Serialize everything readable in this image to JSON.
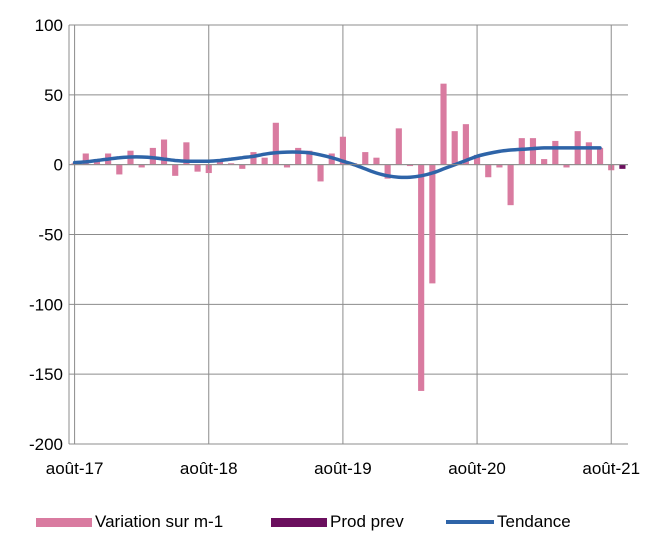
{
  "chart_data": {
    "type": "bar",
    "title": "",
    "xlabel": "",
    "ylabel": "",
    "ylim": [
      -200,
      100
    ],
    "yticks": [
      100,
      50,
      0,
      -50,
      -100,
      -150,
      -200
    ],
    "xtick_labels": [
      "août-17",
      "août-18",
      "août-19",
      "août-20",
      "août-21"
    ],
    "x": [
      "2017-08",
      "2017-09",
      "2017-10",
      "2017-11",
      "2017-12",
      "2018-01",
      "2018-02",
      "2018-03",
      "2018-04",
      "2018-05",
      "2018-06",
      "2018-07",
      "2018-08",
      "2018-09",
      "2018-10",
      "2018-11",
      "2018-12",
      "2019-01",
      "2019-02",
      "2019-03",
      "2019-04",
      "2019-05",
      "2019-06",
      "2019-07",
      "2019-08",
      "2019-09",
      "2019-10",
      "2019-11",
      "2019-12",
      "2020-01",
      "2020-02",
      "2020-03",
      "2020-04",
      "2020-05",
      "2020-06",
      "2020-07",
      "2020-08",
      "2020-09",
      "2020-10",
      "2020-11",
      "2020-12",
      "2021-01",
      "2021-02",
      "2021-03",
      "2021-04",
      "2021-05",
      "2021-06",
      "2021-07",
      "2021-08",
      "2021-09"
    ],
    "series": [
      {
        "name": "Variation sur m-1",
        "kind": "bar",
        "color": "#d97ba0",
        "values": [
          1,
          8,
          3,
          8,
          -7,
          10,
          -2,
          12,
          18,
          -8,
          16,
          -5,
          -6,
          3,
          1,
          -3,
          9,
          5,
          30,
          -2,
          12,
          10,
          -12,
          8,
          20,
          1,
          9,
          5,
          -10,
          26,
          -1,
          -162,
          -85,
          58,
          24,
          29,
          7,
          -9,
          -2,
          -29,
          19,
          19,
          4,
          17,
          -2,
          24,
          16,
          12,
          -4,
          null
        ]
      },
      {
        "name": "Prod prev",
        "kind": "bar",
        "color": "#6b0f5e",
        "values": [
          null,
          null,
          null,
          null,
          null,
          null,
          null,
          null,
          null,
          null,
          null,
          null,
          null,
          null,
          null,
          null,
          null,
          null,
          null,
          null,
          null,
          null,
          null,
          null,
          null,
          null,
          null,
          null,
          null,
          null,
          null,
          null,
          null,
          null,
          null,
          null,
          null,
          null,
          null,
          null,
          null,
          null,
          null,
          null,
          null,
          null,
          null,
          null,
          null,
          -3
        ]
      },
      {
        "name": "Tendance",
        "kind": "line",
        "color": "#2e64a8",
        "values": [
          1.5,
          2,
          3,
          4,
          5,
          5.5,
          5.5,
          5,
          4,
          3,
          2.5,
          2.5,
          2.5,
          3,
          4,
          5,
          6,
          7.5,
          8.5,
          9,
          9,
          8.5,
          7,
          5,
          2.5,
          0,
          -3,
          -6,
          -8,
          -9,
          -9,
          -8,
          -6,
          -3,
          0,
          3,
          6,
          8,
          9.5,
          10.5,
          11,
          11.5,
          12,
          12,
          12,
          12,
          12,
          12,
          null,
          null
        ]
      }
    ],
    "grid": "vertical",
    "legend_position": "bottom"
  },
  "legend": {
    "items": [
      {
        "label": "Variation sur m-1",
        "color": "#d97ba0",
        "kind": "bar"
      },
      {
        "label": "Prod prev",
        "color": "#6b0f5e",
        "kind": "bar"
      },
      {
        "label": "Tendance",
        "color": "#2e64a8",
        "kind": "line"
      }
    ]
  }
}
